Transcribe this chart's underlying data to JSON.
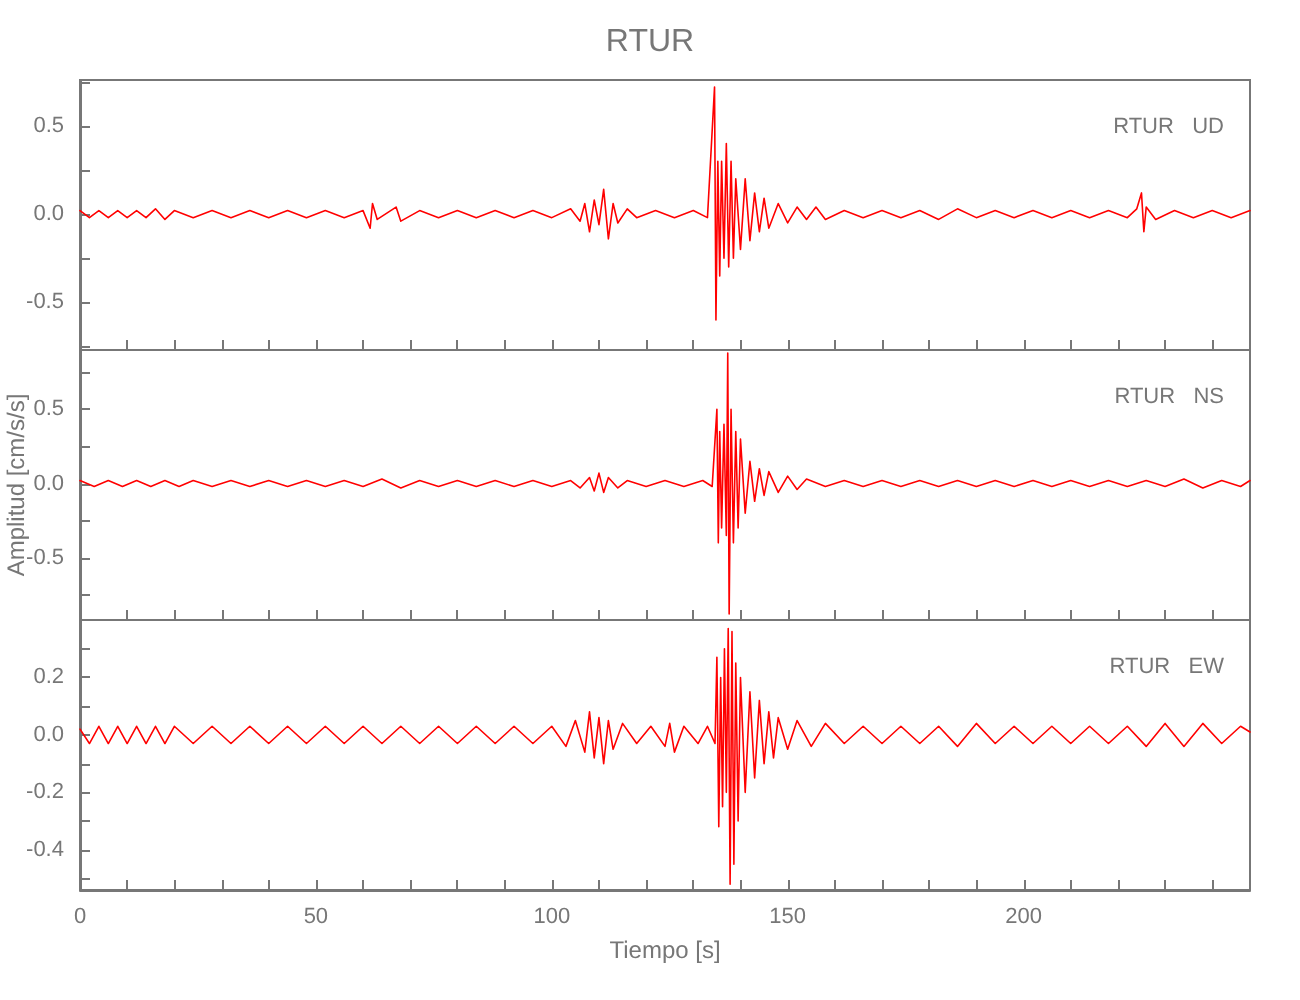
{
  "chart_data": [
    {
      "type": "line",
      "title": "RTUR",
      "annotations": [
        "RTUR   UD"
      ],
      "tick_labels": "y",
      "grid": false,
      "xlim": [
        0,
        248
      ],
      "ylim": [
        -0.77,
        0.76
      ],
      "xticks": [
        {
          "value": 0,
          "label": null
        },
        {
          "value": 10,
          "label": null
        },
        {
          "value": 20,
          "label": null
        },
        {
          "value": 30,
          "label": null
        },
        {
          "value": 40,
          "label": null
        },
        {
          "value": 50,
          "label": null
        },
        {
          "value": 60,
          "label": null
        },
        {
          "value": 70,
          "label": null
        },
        {
          "value": 80,
          "label": null
        },
        {
          "value": 90,
          "label": null
        },
        {
          "value": 100,
          "label": null
        },
        {
          "value": 110,
          "label": null
        },
        {
          "value": 120,
          "label": null
        },
        {
          "value": 130,
          "label": null
        },
        {
          "value": 140,
          "label": null
        },
        {
          "value": 150,
          "label": null
        },
        {
          "value": 160,
          "label": null
        },
        {
          "value": 170,
          "label": null
        },
        {
          "value": 180,
          "label": null
        },
        {
          "value": 190,
          "label": null
        },
        {
          "value": 200,
          "label": null
        },
        {
          "value": 210,
          "label": null
        },
        {
          "value": 220,
          "label": null
        },
        {
          "value": 230,
          "label": null
        },
        {
          "value": 240,
          "label": null
        }
      ],
      "yticks": [
        {
          "value": -0.75,
          "label": null
        },
        {
          "value": -0.5,
          "label": "-0.5"
        },
        {
          "value": -0.25,
          "label": null
        },
        {
          "value": 0,
          "label": "0.0"
        },
        {
          "value": 0.25,
          "label": null
        },
        {
          "value": 0.5,
          "label": "0.5"
        },
        {
          "value": 0.75,
          "label": null
        }
      ],
      "series": [
        {
          "color": "#ff0000",
          "x": [
            0,
            2,
            4,
            6,
            8,
            10,
            12,
            14,
            16,
            18,
            20,
            24,
            28,
            32,
            36,
            40,
            44,
            48,
            52,
            56,
            60,
            61.5,
            62,
            63,
            67,
            68,
            72,
            76,
            80,
            84,
            88,
            92,
            96,
            100,
            104,
            106,
            107,
            108,
            109,
            110,
            111,
            112,
            113,
            114,
            116,
            118,
            122,
            126,
            130,
            133,
            134.5,
            134.8,
            135.2,
            135.6,
            136,
            136.5,
            137,
            137.5,
            138,
            138.5,
            139,
            140,
            141,
            142,
            143,
            144,
            145,
            146,
            148,
            150,
            152,
            154,
            156,
            158,
            162,
            166,
            170,
            174,
            178,
            182,
            186,
            190,
            194,
            198,
            202,
            206,
            210,
            214,
            218,
            222,
            224,
            225,
            225.5,
            226,
            228,
            232,
            236,
            240,
            244,
            248
          ],
          "values": [
            0.02,
            -0.02,
            0.02,
            -0.02,
            0.02,
            -0.02,
            0.02,
            -0.02,
            0.03,
            -0.03,
            0.02,
            -0.02,
            0.02,
            -0.02,
            0.02,
            -0.02,
            0.02,
            -0.02,
            0.02,
            -0.02,
            0.02,
            -0.08,
            0.06,
            -0.03,
            0.04,
            -0.04,
            0.02,
            -0.02,
            0.02,
            -0.02,
            0.02,
            -0.02,
            0.02,
            -0.02,
            0.03,
            -0.04,
            0.06,
            -0.1,
            0.08,
            -0.06,
            0.14,
            -0.14,
            0.06,
            -0.05,
            0.03,
            -0.02,
            0.02,
            -0.02,
            0.02,
            -0.02,
            0.72,
            -0.6,
            0.3,
            -0.35,
            0.3,
            -0.25,
            0.4,
            -0.3,
            0.3,
            -0.25,
            0.2,
            -0.2,
            0.2,
            -0.15,
            0.12,
            -0.1,
            0.09,
            -0.08,
            0.06,
            -0.05,
            0.04,
            -0.03,
            0.04,
            -0.03,
            0.02,
            -0.02,
            0.02,
            -0.02,
            0.02,
            -0.03,
            0.03,
            -0.02,
            0.02,
            -0.02,
            0.02,
            -0.02,
            0.02,
            -0.02,
            0.02,
            -0.02,
            0.03,
            0.12,
            -0.1,
            0.04,
            -0.03,
            0.02,
            -0.02,
            0.02,
            -0.02,
            0.02
          ]
        }
      ]
    },
    {
      "type": "line",
      "ylabel": "Amplitud [cm/s/s]",
      "annotations": [
        "RTUR   NS"
      ],
      "tick_labels": "y",
      "grid": false,
      "xlim": [
        0,
        248
      ],
      "ylim": [
        -0.92,
        0.9
      ],
      "xticks": [
        {
          "value": 0,
          "label": null
        },
        {
          "value": 10,
          "label": null
        },
        {
          "value": 20,
          "label": null
        },
        {
          "value": 30,
          "label": null
        },
        {
          "value": 40,
          "label": null
        },
        {
          "value": 50,
          "label": null
        },
        {
          "value": 60,
          "label": null
        },
        {
          "value": 70,
          "label": null
        },
        {
          "value": 80,
          "label": null
        },
        {
          "value": 90,
          "label": null
        },
        {
          "value": 100,
          "label": null
        },
        {
          "value": 110,
          "label": null
        },
        {
          "value": 120,
          "label": null
        },
        {
          "value": 130,
          "label": null
        },
        {
          "value": 140,
          "label": null
        },
        {
          "value": 150,
          "label": null
        },
        {
          "value": 160,
          "label": null
        },
        {
          "value": 170,
          "label": null
        },
        {
          "value": 180,
          "label": null
        },
        {
          "value": 190,
          "label": null
        },
        {
          "value": 200,
          "label": null
        },
        {
          "value": 210,
          "label": null
        },
        {
          "value": 220,
          "label": null
        },
        {
          "value": 230,
          "label": null
        },
        {
          "value": 240,
          "label": null
        }
      ],
      "yticks": [
        {
          "value": -0.75,
          "label": null
        },
        {
          "value": -0.5,
          "label": "-0.5"
        },
        {
          "value": -0.25,
          "label": null
        },
        {
          "value": 0,
          "label": "0.0"
        },
        {
          "value": 0.25,
          "label": null
        },
        {
          "value": 0.5,
          "label": "0.5"
        },
        {
          "value": 0.75,
          "label": null
        }
      ],
      "series": [
        {
          "color": "#ff0000",
          "x": [
            0,
            3,
            6,
            9,
            12,
            15,
            18,
            21,
            24,
            28,
            32,
            36,
            40,
            44,
            48,
            52,
            56,
            60,
            64,
            68,
            72,
            76,
            80,
            84,
            88,
            92,
            96,
            100,
            104,
            106,
            108,
            109,
            110,
            111,
            112,
            114,
            116,
            120,
            124,
            128,
            132,
            134,
            135,
            135.3,
            135.6,
            136,
            136.5,
            137,
            137.3,
            137.6,
            138,
            138.5,
            139,
            139.5,
            140,
            141,
            142,
            143,
            144,
            145,
            146,
            148,
            150,
            152,
            154,
            158,
            162,
            166,
            170,
            174,
            178,
            182,
            186,
            190,
            194,
            198,
            202,
            206,
            210,
            214,
            218,
            222,
            226,
            230,
            234,
            238,
            242,
            246,
            248
          ],
          "values": [
            0.02,
            -0.02,
            0.02,
            -0.02,
            0.02,
            -0.02,
            0.02,
            -0.02,
            0.02,
            -0.02,
            0.02,
            -0.02,
            0.02,
            -0.02,
            0.02,
            -0.02,
            0.02,
            -0.02,
            0.03,
            -0.03,
            0.02,
            -0.02,
            0.02,
            -0.02,
            0.02,
            -0.02,
            0.02,
            -0.02,
            0.02,
            -0.03,
            0.04,
            -0.05,
            0.07,
            -0.06,
            0.04,
            -0.03,
            0.02,
            -0.02,
            0.02,
            -0.02,
            0.02,
            -0.02,
            0.5,
            -0.4,
            0.35,
            -0.3,
            0.4,
            -0.35,
            0.88,
            -0.88,
            0.5,
            -0.4,
            0.35,
            -0.3,
            0.3,
            -0.2,
            0.15,
            -0.12,
            0.1,
            -0.08,
            0.08,
            -0.06,
            0.05,
            -0.04,
            0.03,
            -0.02,
            0.02,
            -0.02,
            0.02,
            -0.02,
            0.02,
            -0.02,
            0.02,
            -0.02,
            0.02,
            -0.02,
            0.02,
            -0.02,
            0.02,
            -0.02,
            0.02,
            -0.02,
            0.02,
            -0.02,
            0.03,
            -0.03,
            0.02,
            -0.02,
            0.02
          ]
        }
      ]
    },
    {
      "type": "line",
      "xlabel": "Tiempo [s]",
      "annotations": [
        "RTUR   EW"
      ],
      "grid": false,
      "xlim": [
        0,
        248
      ],
      "ylim": [
        -0.54,
        0.4
      ],
      "xticks": [
        {
          "value": 0,
          "label": "0"
        },
        {
          "value": 10,
          "label": null
        },
        {
          "value": 20,
          "label": null
        },
        {
          "value": 30,
          "label": null
        },
        {
          "value": 40,
          "label": null
        },
        {
          "value": 50,
          "label": "50"
        },
        {
          "value": 60,
          "label": null
        },
        {
          "value": 70,
          "label": null
        },
        {
          "value": 80,
          "label": null
        },
        {
          "value": 90,
          "label": null
        },
        {
          "value": 100,
          "label": "100"
        },
        {
          "value": 110,
          "label": null
        },
        {
          "value": 120,
          "label": null
        },
        {
          "value": 130,
          "label": null
        },
        {
          "value": 140,
          "label": null
        },
        {
          "value": 150,
          "label": "150"
        },
        {
          "value": 160,
          "label": null
        },
        {
          "value": 170,
          "label": null
        },
        {
          "value": 180,
          "label": null
        },
        {
          "value": 190,
          "label": null
        },
        {
          "value": 200,
          "label": "200"
        },
        {
          "value": 210,
          "label": null
        },
        {
          "value": 220,
          "label": null
        },
        {
          "value": 230,
          "label": null
        },
        {
          "value": 240,
          "label": null
        }
      ],
      "yticks": [
        {
          "value": -0.5,
          "label": null
        },
        {
          "value": -0.4,
          "label": "-0.4"
        },
        {
          "value": -0.3,
          "label": null
        },
        {
          "value": -0.2,
          "label": "-0.2"
        },
        {
          "value": -0.1,
          "label": null
        },
        {
          "value": 0,
          "label": "0.0"
        },
        {
          "value": 0.1,
          "label": null
        },
        {
          "value": 0.2,
          "label": "0.2"
        },
        {
          "value": 0.3,
          "label": null
        }
      ],
      "series": [
        {
          "color": "#ff0000",
          "x": [
            0,
            2,
            4,
            6,
            8,
            10,
            12,
            14,
            16,
            18,
            20,
            24,
            28,
            32,
            36,
            40,
            44,
            48,
            52,
            56,
            60,
            64,
            68,
            72,
            76,
            80,
            84,
            88,
            92,
            96,
            100,
            103,
            105,
            107,
            108,
            109,
            110,
            111,
            112,
            113,
            115,
            118,
            121,
            124,
            125,
            126,
            128,
            131,
            133,
            134.6,
            135,
            135.4,
            135.8,
            136.2,
            136.6,
            137,
            137.4,
            137.8,
            138.2,
            138.6,
            139,
            139.5,
            140,
            141,
            142,
            143,
            144,
            145,
            146,
            147,
            148,
            150,
            152,
            155,
            158,
            162,
            166,
            170,
            174,
            178,
            182,
            186,
            190,
            194,
            198,
            202,
            206,
            210,
            214,
            218,
            222,
            226,
            230,
            234,
            238,
            242,
            246,
            248
          ],
          "values": [
            0.02,
            -0.03,
            0.03,
            -0.03,
            0.03,
            -0.03,
            0.03,
            -0.03,
            0.03,
            -0.03,
            0.03,
            -0.03,
            0.03,
            -0.03,
            0.03,
            -0.03,
            0.03,
            -0.03,
            0.03,
            -0.03,
            0.03,
            -0.03,
            0.03,
            -0.03,
            0.03,
            -0.03,
            0.03,
            -0.03,
            0.03,
            -0.03,
            0.03,
            -0.04,
            0.05,
            -0.06,
            0.08,
            -0.08,
            0.06,
            -0.1,
            0.05,
            -0.05,
            0.04,
            -0.03,
            0.03,
            -0.04,
            0.04,
            -0.06,
            0.03,
            -0.03,
            0.03,
            -0.03,
            0.27,
            -0.32,
            0.2,
            -0.25,
            0.3,
            -0.2,
            0.37,
            -0.52,
            0.36,
            -0.45,
            0.25,
            -0.3,
            0.2,
            -0.2,
            0.15,
            -0.15,
            0.12,
            -0.1,
            0.08,
            -0.08,
            0.06,
            -0.05,
            0.05,
            -0.04,
            0.04,
            -0.03,
            0.03,
            -0.03,
            0.03,
            -0.03,
            0.03,
            -0.04,
            0.04,
            -0.03,
            0.03,
            -0.03,
            0.03,
            -0.03,
            0.03,
            -0.03,
            0.03,
            -0.04,
            0.04,
            -0.04,
            0.04,
            -0.03,
            0.03,
            0.01
          ]
        }
      ]
    }
  ]
}
